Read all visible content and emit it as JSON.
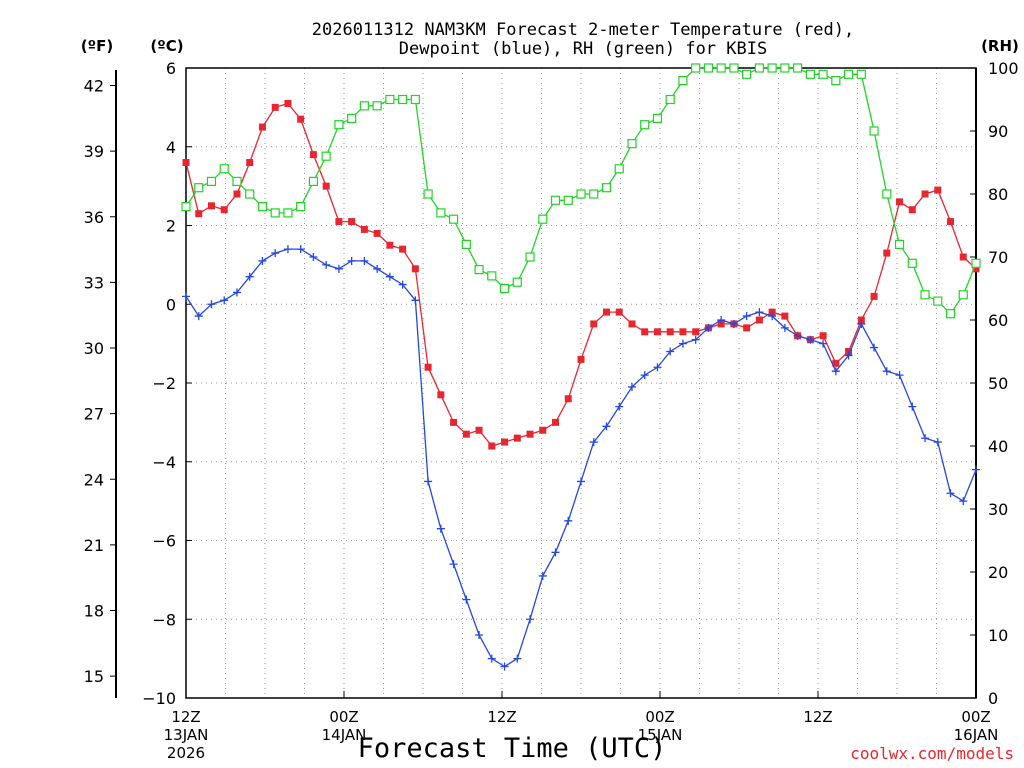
{
  "chart_data": {
    "type": "line",
    "title_line1": "2026011312 NAM3KM Forecast 2-meter Temperature (red),",
    "title_line2": "Dewpoint (blue), RH (green) for KBIS",
    "xlabel": "Forecast Time (UTC)",
    "credit": "coolwx.com/models",
    "units": {
      "fahrenheit": "(ºF)",
      "celsius": "(ºC)",
      "rh": "(RH)"
    },
    "x_range_hours": [
      0,
      60
    ],
    "c_range": [
      -10,
      6
    ],
    "f_range": [
      14,
      42.8
    ],
    "rh_range": [
      0,
      100
    ],
    "c_ticks": [
      "-10",
      "-8",
      "-6",
      "-4",
      "-2",
      "0",
      "2",
      "4",
      "6"
    ],
    "f_ticks": [
      "15",
      "18",
      "21",
      "24",
      "27",
      "30",
      "33",
      "36",
      "39",
      "42"
    ],
    "rh_ticks": [
      "0",
      "10",
      "20",
      "30",
      "40",
      "50",
      "60",
      "70",
      "80",
      "90",
      "100"
    ],
    "x_ticks": [
      {
        "hour": 0,
        "label": "12Z",
        "label2": "13JAN",
        "label3": "2026"
      },
      {
        "hour": 12,
        "label": "00Z",
        "label2": "14JAN",
        "label3": ""
      },
      {
        "hour": 24,
        "label": "12Z",
        "label2": "",
        "label3": ""
      },
      {
        "hour": 36,
        "label": "00Z",
        "label2": "15JAN",
        "label3": ""
      },
      {
        "hour": 48,
        "label": "12Z",
        "label2": "",
        "label3": ""
      },
      {
        "hour": 60,
        "label": "00Z",
        "label2": "16JAN",
        "label3": ""
      }
    ],
    "series": [
      {
        "name": "Temperature",
        "unit": "C",
        "color": "#e8262f",
        "marker": "filled-square",
        "values": [
          3.6,
          2.3,
          2.5,
          2.4,
          2.8,
          3.6,
          4.5,
          5.0,
          5.1,
          4.7,
          3.8,
          3.0,
          2.1,
          2.1,
          1.9,
          1.8,
          1.5,
          1.4,
          0.9,
          -1.6,
          -2.3,
          -3.0,
          -3.3,
          -3.2,
          -3.6,
          -3.5,
          -3.4,
          -3.3,
          -3.2,
          -3.0,
          -2.4,
          -1.4,
          -0.5,
          -0.2,
          -0.2,
          -0.5,
          -0.7,
          -0.7,
          -0.7,
          -0.7,
          -0.7,
          -0.6,
          -0.5,
          -0.5,
          -0.6,
          -0.4,
          -0.2,
          -0.3,
          -0.8,
          -0.9,
          -0.8,
          -1.5,
          -1.2,
          -0.4,
          0.2,
          1.3,
          2.6,
          2.4,
          2.8,
          2.9,
          2.1,
          1.2,
          0.9
        ]
      },
      {
        "name": "Dewpoint",
        "unit": "C",
        "color": "#2448e0",
        "marker": "plus",
        "values": [
          0.2,
          -0.3,
          0.0,
          0.1,
          0.3,
          0.7,
          1.1,
          1.3,
          1.4,
          1.4,
          1.2,
          1.0,
          0.9,
          1.1,
          1.1,
          0.9,
          0.7,
          0.5,
          0.1,
          -4.5,
          -5.7,
          -6.6,
          -7.5,
          -8.4,
          -9.0,
          -9.2,
          -9.0,
          -8.0,
          -6.9,
          -6.3,
          -5.5,
          -4.5,
          -3.5,
          -3.1,
          -2.6,
          -2.1,
          -1.8,
          -1.6,
          -1.2,
          -1.0,
          -0.9,
          -0.6,
          -0.4,
          -0.5,
          -0.3,
          -0.2,
          -0.3,
          -0.6,
          -0.8,
          -0.9,
          -1.0,
          -1.7,
          -1.3,
          -0.5,
          -1.1,
          -1.7,
          -1.8,
          -2.6,
          -3.4,
          -3.5,
          -4.8,
          -5.0,
          -4.2
        ]
      },
      {
        "name": "RH",
        "unit": "%",
        "color": "#22d428",
        "marker": "open-square",
        "values": [
          78,
          81,
          82,
          84,
          82,
          80,
          78,
          77,
          77,
          78,
          82,
          86,
          91,
          92,
          94,
          94,
          95,
          95,
          95,
          80,
          77,
          76,
          72,
          68,
          67,
          65,
          66,
          70,
          76,
          79,
          79,
          80,
          80,
          81,
          84,
          88,
          91,
          92,
          95,
          98,
          100,
          100,
          100,
          100,
          99,
          100,
          100,
          100,
          100,
          99,
          99,
          98,
          99,
          99,
          90,
          80,
          72,
          69,
          64,
          63,
          61,
          64,
          69
        ]
      }
    ]
  }
}
